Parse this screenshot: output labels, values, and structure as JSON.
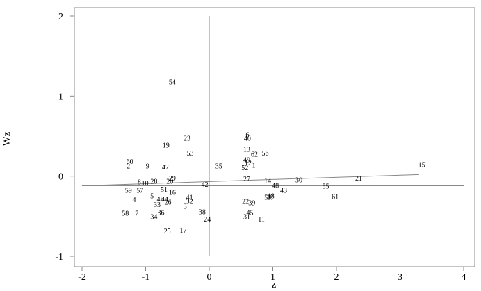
{
  "chart_data": {
    "type": "scatter",
    "title": "",
    "xlabel": "z",
    "ylabel": "Wz",
    "xlim": [
      -2,
      4
    ],
    "ylim": [
      -1,
      2
    ],
    "x_ticks": [
      -2,
      -1,
      0,
      1,
      2,
      3,
      4
    ],
    "y_ticks": [
      -1,
      0,
      1,
      2
    ],
    "grid": false,
    "legend": "none",
    "colors": {
      "axis": "#888888",
      "text": "#000000",
      "line": "#888888"
    },
    "reference_lines": {
      "vertical_x": 0,
      "horizontal_y": -0.12,
      "vertical_y_range": [
        -1,
        2
      ]
    },
    "regression_line": {
      "x": [
        -2,
        3.3
      ],
      "y": [
        -0.12,
        0.02
      ]
    },
    "points": [
      {
        "label": "1",
        "x": 0.7,
        "y": 0.14
      },
      {
        "label": "2",
        "x": -1.27,
        "y": 0.13
      },
      {
        "label": "3",
        "x": -0.38,
        "y": -0.37
      },
      {
        "label": "4",
        "x": -1.18,
        "y": -0.29
      },
      {
        "label": "5",
        "x": -0.9,
        "y": -0.24
      },
      {
        "label": "6",
        "x": 0.6,
        "y": 0.52
      },
      {
        "label": "7",
        "x": -1.14,
        "y": -0.46
      },
      {
        "label": "8",
        "x": -1.1,
        "y": -0.07
      },
      {
        "label": "9",
        "x": -0.97,
        "y": 0.13
      },
      {
        "label": "10",
        "x": -1.01,
        "y": -0.08
      },
      {
        "label": "11",
        "x": 0.82,
        "y": -0.53
      },
      {
        "label": "12",
        "x": 0.61,
        "y": 0.17
      },
      {
        "label": "13",
        "x": 0.59,
        "y": 0.34
      },
      {
        "label": "14",
        "x": 0.92,
        "y": -0.05
      },
      {
        "label": "15",
        "x": 3.34,
        "y": 0.15
      },
      {
        "label": "16",
        "x": -0.58,
        "y": -0.2
      },
      {
        "label": "17",
        "x": -0.41,
        "y": -0.67
      },
      {
        "label": "18",
        "x": 0.97,
        "y": -0.24
      },
      {
        "label": "19",
        "x": -0.68,
        "y": 0.39
      },
      {
        "label": "20",
        "x": -0.62,
        "y": -0.06
      },
      {
        "label": "21",
        "x": 2.35,
        "y": -0.02
      },
      {
        "label": "22",
        "x": 0.57,
        "y": -0.31
      },
      {
        "label": "23",
        "x": -0.35,
        "y": 0.48
      },
      {
        "label": "24",
        "x": -0.03,
        "y": -0.53
      },
      {
        "label": "25",
        "x": -0.66,
        "y": -0.68
      },
      {
        "label": "26",
        "x": -0.65,
        "y": -0.32
      },
      {
        "label": "27",
        "x": 0.59,
        "y": -0.03
      },
      {
        "label": "28",
        "x": -0.87,
        "y": -0.06
      },
      {
        "label": "29",
        "x": -0.58,
        "y": -0.02
      },
      {
        "label": "30",
        "x": 1.41,
        "y": -0.04
      },
      {
        "label": "31",
        "x": 0.59,
        "y": -0.5
      },
      {
        "label": "32",
        "x": -0.31,
        "y": -0.31
      },
      {
        "label": "33",
        "x": -0.82,
        "y": -0.35
      },
      {
        "label": "34",
        "x": -0.87,
        "y": -0.5
      },
      {
        "label": "35",
        "x": 0.15,
        "y": 0.13
      },
      {
        "label": "36",
        "x": -0.76,
        "y": -0.45
      },
      {
        "label": "37",
        "x": 0.96,
        "y": -0.26
      },
      {
        "label": "38",
        "x": -0.11,
        "y": -0.44
      },
      {
        "label": "39",
        "x": 0.67,
        "y": -0.33
      },
      {
        "label": "40",
        "x": 0.6,
        "y": 0.48
      },
      {
        "label": "41",
        "x": -0.31,
        "y": -0.26
      },
      {
        "label": "42",
        "x": -0.07,
        "y": -0.1
      },
      {
        "label": "43",
        "x": 1.17,
        "y": -0.17
      },
      {
        "label": "44",
        "x": -0.7,
        "y": -0.28
      },
      {
        "label": "45",
        "x": 0.64,
        "y": -0.45
      },
      {
        "label": "46",
        "x": -0.77,
        "y": -0.28
      },
      {
        "label": "47",
        "x": -0.69,
        "y": 0.12
      },
      {
        "label": "48",
        "x": 1.04,
        "y": -0.11
      },
      {
        "label": "49",
        "x": 0.59,
        "y": 0.21
      },
      {
        "label": "50",
        "x": 0.92,
        "y": -0.26
      },
      {
        "label": "51",
        "x": -0.71,
        "y": -0.16
      },
      {
        "label": "52",
        "x": 0.56,
        "y": 0.11
      },
      {
        "label": "53",
        "x": -0.3,
        "y": 0.29
      },
      {
        "label": "54",
        "x": -0.58,
        "y": 1.18
      },
      {
        "label": "55",
        "x": 1.83,
        "y": -0.12
      },
      {
        "label": "56",
        "x": 0.88,
        "y": 0.29
      },
      {
        "label": "57",
        "x": -1.09,
        "y": -0.17
      },
      {
        "label": "58",
        "x": -1.32,
        "y": -0.46
      },
      {
        "label": "59",
        "x": -1.27,
        "y": -0.17
      },
      {
        "label": "60",
        "x": -1.25,
        "y": 0.19
      },
      {
        "label": "61",
        "x": 1.98,
        "y": -0.25
      },
      {
        "label": "62",
        "x": 0.71,
        "y": 0.28
      }
    ]
  }
}
